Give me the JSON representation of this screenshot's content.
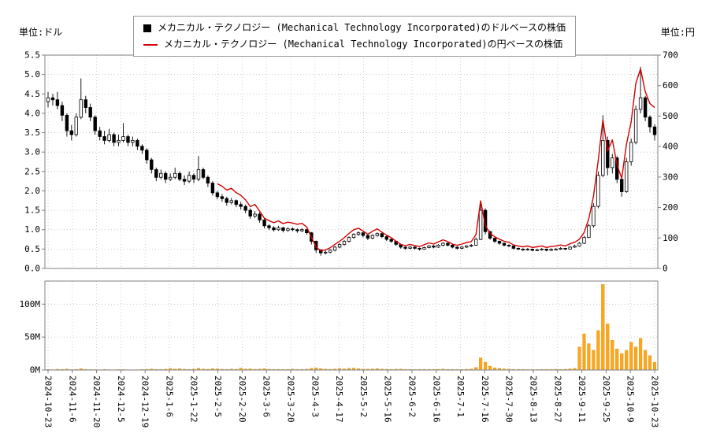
{
  "labels": {
    "unit_left": "単位:ドル",
    "unit_right": "単位:円"
  },
  "legend": {
    "usd_label": "メカニカル・テクノロジー (Mechanical Technology Incorporated)のドルベースの株価",
    "jpy_label": "メカニカル・テクノロジー (Mechanical Technology Incorporated)の円ベースの株価"
  },
  "colors": {
    "usd_candle": "#000000",
    "jpy_line": "#d40000",
    "volume_bar": "#ffa519",
    "volume_edge": "#cc8400",
    "grid": "#bbbbbb",
    "axis": "#808080"
  },
  "chart_data": {
    "type": "candlestick+line+volume",
    "price_axis_left": {
      "label": "単位:ドル",
      "min": 0.0,
      "max": 5.5,
      "tick_step": 0.5
    },
    "price_axis_right": {
      "label": "単位:円",
      "min": 0,
      "max": 700,
      "tick_step": 100
    },
    "volume_axis": {
      "min": 0,
      "max": 135,
      "ticks": [
        {
          "label": "0M",
          "value": 0
        },
        {
          "label": "50M",
          "value": 50
        },
        {
          "label": "100M",
          "value": 100
        }
      ]
    },
    "x_tick_labels": [
      "2024-10-23",
      "2024-11-6",
      "2024-11-20",
      "2024-12-5",
      "2024-12-19",
      "2025-1-6",
      "2025-1-22",
      "2025-2-5",
      "2025-2-20",
      "2025-3-6",
      "2025-3-20",
      "2025-4-3",
      "2025-4-17",
      "2025-5-2",
      "2025-5-16",
      "2025-6-2",
      "2025-6-16",
      "2025-7-1",
      "2025-7-16",
      "2025-7-30",
      "2025-8-13",
      "2025-8-27",
      "2025-9-11",
      "2025-9-25",
      "2025-10-9",
      "2025-10-23"
    ],
    "usd_ohlc": [
      [
        4.3,
        4.55,
        4.15,
        4.4
      ],
      [
        4.4,
        4.5,
        4.2,
        4.35
      ],
      [
        4.35,
        4.55,
        4.1,
        4.2
      ],
      [
        4.2,
        4.3,
        3.8,
        3.95
      ],
      [
        3.95,
        4.0,
        3.4,
        3.55
      ],
      [
        3.55,
        3.7,
        3.3,
        3.45
      ],
      [
        3.45,
        4.0,
        3.4,
        3.9
      ],
      [
        3.9,
        4.9,
        3.85,
        4.35
      ],
      [
        4.35,
        4.45,
        4.0,
        4.15
      ],
      [
        4.15,
        4.25,
        3.8,
        3.9
      ],
      [
        3.9,
        3.95,
        3.45,
        3.55
      ],
      [
        3.55,
        3.65,
        3.3,
        3.4
      ],
      [
        3.4,
        3.55,
        3.2,
        3.3
      ],
      [
        3.3,
        3.6,
        3.25,
        3.45
      ],
      [
        3.45,
        3.5,
        3.15,
        3.25
      ],
      [
        3.25,
        3.45,
        3.15,
        3.3
      ],
      [
        3.3,
        3.75,
        3.25,
        3.4
      ],
      [
        3.4,
        3.45,
        3.15,
        3.25
      ],
      [
        3.25,
        3.4,
        3.15,
        3.3
      ],
      [
        3.3,
        3.35,
        3.05,
        3.15
      ],
      [
        3.15,
        3.2,
        2.95,
        3.05
      ],
      [
        3.05,
        3.1,
        2.7,
        2.8
      ],
      [
        2.8,
        2.85,
        2.45,
        2.55
      ],
      [
        2.55,
        2.6,
        2.25,
        2.35
      ],
      [
        2.35,
        2.55,
        2.3,
        2.45
      ],
      [
        2.45,
        2.5,
        2.2,
        2.3
      ],
      [
        2.3,
        2.45,
        2.25,
        2.35
      ],
      [
        2.35,
        2.6,
        2.3,
        2.45
      ],
      [
        2.45,
        2.5,
        2.25,
        2.3
      ],
      [
        2.3,
        2.4,
        2.15,
        2.25
      ],
      [
        2.25,
        2.5,
        2.2,
        2.4
      ],
      [
        2.4,
        2.45,
        2.2,
        2.3
      ],
      [
        2.3,
        2.9,
        2.25,
        2.55
      ],
      [
        2.55,
        2.6,
        2.3,
        2.35
      ],
      [
        2.35,
        2.4,
        2.1,
        2.2
      ],
      [
        2.2,
        2.25,
        1.88,
        1.95
      ],
      [
        1.95,
        2.0,
        1.78,
        1.85
      ],
      [
        1.85,
        1.92,
        1.72,
        1.8
      ],
      [
        1.8,
        1.85,
        1.62,
        1.7
      ],
      [
        1.7,
        1.82,
        1.65,
        1.75
      ],
      [
        1.75,
        1.78,
        1.58,
        1.65
      ],
      [
        1.65,
        1.72,
        1.52,
        1.6
      ],
      [
        1.6,
        1.65,
        1.42,
        1.5
      ],
      [
        1.5,
        1.55,
        1.28,
        1.35
      ],
      [
        1.35,
        1.48,
        1.3,
        1.4
      ],
      [
        1.4,
        1.45,
        1.18,
        1.25
      ],
      [
        1.25,
        1.3,
        1.03,
        1.1
      ],
      [
        1.1,
        1.14,
        0.99,
        1.05
      ],
      [
        1.05,
        1.09,
        0.95,
        1.0
      ],
      [
        1.0,
        1.1,
        0.97,
        1.05
      ],
      [
        1.05,
        1.07,
        0.93,
        0.98
      ],
      [
        0.98,
        1.06,
        0.95,
        1.02
      ],
      [
        1.02,
        1.06,
        0.96,
        1.0
      ],
      [
        1.0,
        1.03,
        0.92,
        0.97
      ],
      [
        0.97,
        1.04,
        0.94,
        1.0
      ],
      [
        1.0,
        1.02,
        0.87,
        0.92
      ],
      [
        0.92,
        0.94,
        0.62,
        0.7
      ],
      [
        0.7,
        0.72,
        0.4,
        0.48
      ],
      [
        0.48,
        0.5,
        0.33,
        0.4
      ],
      [
        0.4,
        0.46,
        0.36,
        0.42
      ],
      [
        0.42,
        0.5,
        0.39,
        0.47
      ],
      [
        0.47,
        0.58,
        0.44,
        0.55
      ],
      [
        0.55,
        0.65,
        0.52,
        0.62
      ],
      [
        0.62,
        0.73,
        0.59,
        0.7
      ],
      [
        0.7,
        0.83,
        0.67,
        0.8
      ],
      [
        0.8,
        0.91,
        0.77,
        0.88
      ],
      [
        0.88,
        0.96,
        0.84,
        0.92
      ],
      [
        0.92,
        0.94,
        0.8,
        0.85
      ],
      [
        0.85,
        0.87,
        0.73,
        0.78
      ],
      [
        0.78,
        0.88,
        0.75,
        0.85
      ],
      [
        0.85,
        0.93,
        0.82,
        0.9
      ],
      [
        0.9,
        0.92,
        0.78,
        0.82
      ],
      [
        0.82,
        0.84,
        0.71,
        0.75
      ],
      [
        0.75,
        0.77,
        0.66,
        0.7
      ],
      [
        0.7,
        0.72,
        0.58,
        0.62
      ],
      [
        0.62,
        0.64,
        0.51,
        0.55
      ],
      [
        0.55,
        0.57,
        0.48,
        0.52
      ],
      [
        0.52,
        0.58,
        0.5,
        0.55
      ],
      [
        0.55,
        0.57,
        0.49,
        0.52
      ],
      [
        0.52,
        0.54,
        0.46,
        0.5
      ],
      [
        0.5,
        0.56,
        0.48,
        0.54
      ],
      [
        0.54,
        0.61,
        0.52,
        0.58
      ],
      [
        0.58,
        0.6,
        0.52,
        0.55
      ],
      [
        0.55,
        0.63,
        0.53,
        0.6
      ],
      [
        0.6,
        0.68,
        0.57,
        0.65
      ],
      [
        0.65,
        0.67,
        0.57,
        0.6
      ],
      [
        0.6,
        0.62,
        0.52,
        0.55
      ],
      [
        0.55,
        0.57,
        0.49,
        0.52
      ],
      [
        0.52,
        0.58,
        0.5,
        0.55
      ],
      [
        0.55,
        0.6,
        0.53,
        0.58
      ],
      [
        0.58,
        0.63,
        0.55,
        0.6
      ],
      [
        0.6,
        0.8,
        0.58,
        0.75
      ],
      [
        0.75,
        1.72,
        0.73,
        1.5
      ],
      [
        1.5,
        1.55,
        0.88,
        0.95
      ],
      [
        0.95,
        0.97,
        0.74,
        0.78
      ],
      [
        0.78,
        0.8,
        0.66,
        0.7
      ],
      [
        0.7,
        0.72,
        0.61,
        0.65
      ],
      [
        0.65,
        0.67,
        0.57,
        0.6
      ],
      [
        0.6,
        0.62,
        0.55,
        0.58
      ],
      [
        0.58,
        0.59,
        0.49,
        0.52
      ],
      [
        0.52,
        0.54,
        0.47,
        0.5
      ],
      [
        0.5,
        0.52,
        0.45,
        0.48
      ],
      [
        0.48,
        0.53,
        0.46,
        0.5
      ],
      [
        0.5,
        0.51,
        0.44,
        0.47
      ],
      [
        0.47,
        0.51,
        0.45,
        0.48
      ],
      [
        0.48,
        0.53,
        0.46,
        0.5
      ],
      [
        0.5,
        0.51,
        0.44,
        0.47
      ],
      [
        0.47,
        0.52,
        0.45,
        0.49
      ],
      [
        0.49,
        0.53,
        0.47,
        0.5
      ],
      [
        0.5,
        0.55,
        0.48,
        0.52
      ],
      [
        0.52,
        0.53,
        0.47,
        0.5
      ],
      [
        0.5,
        0.57,
        0.49,
        0.55
      ],
      [
        0.55,
        0.61,
        0.53,
        0.58
      ],
      [
        0.58,
        0.68,
        0.56,
        0.65
      ],
      [
        0.65,
        0.84,
        0.63,
        0.8
      ],
      [
        0.8,
        1.15,
        0.78,
        1.1
      ],
      [
        1.1,
        1.68,
        1.05,
        1.6
      ],
      [
        1.6,
        2.5,
        1.55,
        2.4
      ],
      [
        2.4,
        3.95,
        2.35,
        3.3
      ],
      [
        3.3,
        3.4,
        2.4,
        2.6
      ],
      [
        2.6,
        2.95,
        2.45,
        2.85
      ],
      [
        2.85,
        2.9,
        2.2,
        2.3
      ],
      [
        2.3,
        2.38,
        1.85,
        1.98
      ],
      [
        1.98,
        2.85,
        1.95,
        2.75
      ],
      [
        2.75,
        3.35,
        2.65,
        3.25
      ],
      [
        3.25,
        4.2,
        3.2,
        4.1
      ],
      [
        4.1,
        5.2,
        4.0,
        4.4
      ],
      [
        4.4,
        4.45,
        3.8,
        3.9
      ],
      [
        3.9,
        3.95,
        3.5,
        3.65
      ],
      [
        3.65,
        3.72,
        3.3,
        3.45
      ]
    ],
    "jpy_close": [
      null,
      null,
      null,
      null,
      null,
      null,
      null,
      null,
      null,
      null,
      null,
      null,
      null,
      null,
      null,
      null,
      null,
      null,
      null,
      null,
      null,
      null,
      null,
      null,
      null,
      null,
      null,
      null,
      null,
      null,
      null,
      null,
      null,
      null,
      null,
      null,
      278,
      270,
      257,
      263,
      249,
      240,
      225,
      203,
      210,
      188,
      165,
      157,
      150,
      156,
      147,
      152,
      149,
      145,
      148,
      136,
      103,
      70,
      58,
      61,
      68,
      79,
      89,
      101,
      115,
      127,
      132,
      123,
      112,
      122,
      130,
      119,
      109,
      101,
      90,
      79,
      75,
      79,
      75,
      72,
      78,
      84,
      80,
      87,
      94,
      88,
      80,
      76,
      80,
      85,
      88,
      111,
      222,
      141,
      115,
      104,
      96,
      89,
      86,
      77,
      74,
      71,
      74,
      69,
      71,
      74,
      69,
      72,
      74,
      77,
      74,
      81,
      86,
      96,
      118,
      163,
      237,
      355,
      488,
      385,
      422,
      340,
      296,
      407,
      481,
      607,
      655,
      580,
      541,
      528
    ],
    "volume_m": [
      0.8,
      0.6,
      1.2,
      0.9,
      1.5,
      0.7,
      1.0,
      2.0,
      0.9,
      0.7,
      0.6,
      0.5,
      0.8,
      0.6,
      0.5,
      0.7,
      1.0,
      0.6,
      0.5,
      0.6,
      0.8,
      1.2,
      1.5,
      1.0,
      0.8,
      1.2,
      2.5,
      1.5,
      2.0,
      1.2,
      1.0,
      1.5,
      2.8,
      1.5,
      1.2,
      2.2,
      1.8,
      1.2,
      1.0,
      1.4,
      1.1,
      3.0,
      1.6,
      1.8,
      1.2,
      1.5,
      2.2,
      1.2,
      0.9,
      1.1,
      0.8,
      1.0,
      1.4,
      1.0,
      0.9,
      1.3,
      2.6,
      3.2,
      2.2,
      1.4,
      1.2,
      1.6,
      2.4,
      1.8,
      2.6,
      3.0,
      2.2,
      1.6,
      1.4,
      1.7,
      2.0,
      1.4,
      1.2,
      1.0,
      1.3,
      1.6,
      0.9,
      0.8,
      0.7,
      0.9,
      1.1,
      1.0,
      0.8,
      1.2,
      1.5,
      0.9,
      0.8,
      0.7,
      1.0,
      1.2,
      1.5,
      4.0,
      18.5,
      12.0,
      6.0,
      3.5,
      2.5,
      1.8,
      1.4,
      1.0,
      0.8,
      0.9,
      0.7,
      0.8,
      0.7,
      0.9,
      0.8,
      1.0,
      1.2,
      1.0,
      1.2,
      1.8,
      2.5,
      35.0,
      55.0,
      40.0,
      30.0,
      60.0,
      130.0,
      70.0,
      45.0,
      32.0,
      25.0,
      30.0,
      42.0,
      35.0,
      48.0,
      30.0,
      22.0,
      12.0
    ]
  }
}
